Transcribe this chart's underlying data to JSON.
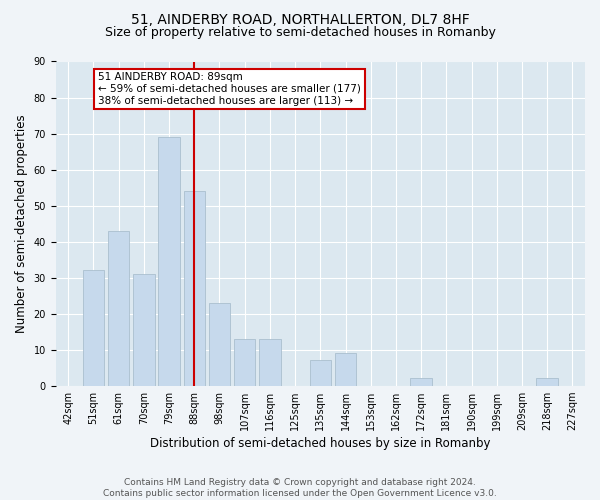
{
  "title": "51, AINDERBY ROAD, NORTHALLERTON, DL7 8HF",
  "subtitle": "Size of property relative to semi-detached houses in Romanby",
  "xlabel": "Distribution of semi-detached houses by size in Romanby",
  "ylabel": "Number of semi-detached properties",
  "categories": [
    "42sqm",
    "51sqm",
    "61sqm",
    "70sqm",
    "79sqm",
    "88sqm",
    "98sqm",
    "107sqm",
    "116sqm",
    "125sqm",
    "135sqm",
    "144sqm",
    "153sqm",
    "162sqm",
    "172sqm",
    "181sqm",
    "190sqm",
    "199sqm",
    "209sqm",
    "218sqm",
    "227sqm"
  ],
  "values": [
    0,
    32,
    43,
    31,
    69,
    54,
    23,
    13,
    13,
    0,
    7,
    9,
    0,
    0,
    2,
    0,
    0,
    0,
    0,
    2,
    0
  ],
  "bar_color": "#c6d9ec",
  "bar_edge_color": "#aabfcf",
  "vline_x_idx": 5,
  "vline_color": "#cc0000",
  "annotation_text": "51 AINDERBY ROAD: 89sqm\n← 59% of semi-detached houses are smaller (177)\n38% of semi-detached houses are larger (113) →",
  "annotation_box_color": "#cc0000",
  "annotation_bg": "#ffffff",
  "ylim": [
    0,
    90
  ],
  "yticks": [
    0,
    10,
    20,
    30,
    40,
    50,
    60,
    70,
    80,
    90
  ],
  "footer": "Contains HM Land Registry data © Crown copyright and database right 2024.\nContains public sector information licensed under the Open Government Licence v3.0.",
  "bg_color": "#f0f4f8",
  "plot_bg_color": "#dce8f0",
  "grid_color": "#ffffff",
  "title_fontsize": 10,
  "subtitle_fontsize": 9,
  "xlabel_fontsize": 8.5,
  "ylabel_fontsize": 8.5,
  "tick_fontsize": 7,
  "footer_fontsize": 6.5,
  "ann_fontsize": 7.5
}
